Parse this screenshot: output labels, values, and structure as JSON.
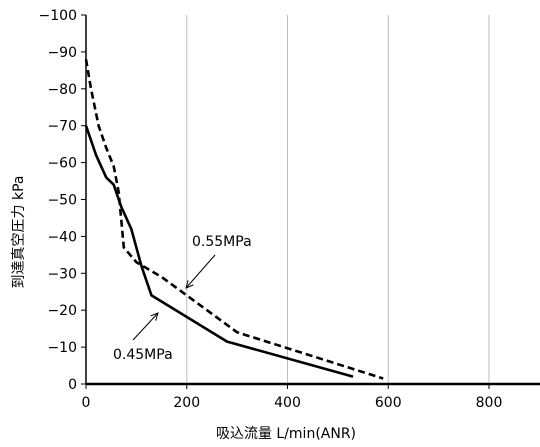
{
  "chart_data": {
    "type": "line",
    "title": "",
    "xlabel": "吸込流量 L/min(ANR)",
    "ylabel": "到達真空圧力 kPa",
    "xlim": [
      0,
      900
    ],
    "ylim": [
      0,
      -100
    ],
    "x_ticks": [
      0,
      200,
      400,
      600,
      800
    ],
    "y_ticks": [
      0,
      -10,
      -20,
      -30,
      -40,
      -50,
      -60,
      -70,
      -80,
      -90,
      -100
    ],
    "x_tick_labels": [
      "0",
      "200",
      "400",
      "600",
      "800"
    ],
    "y_tick_labels": [
      "0",
      "−10",
      "−20",
      "−30",
      "−40",
      "−50",
      "−60",
      "−70",
      "−80",
      "−90",
      "−100"
    ],
    "grid": {
      "vertical": true,
      "horizontal": false
    },
    "legend": "none",
    "series": [
      {
        "name": "0.45MPa",
        "style": "solid",
        "color": "#000000",
        "points": [
          [
            0,
            -70
          ],
          [
            20,
            -62
          ],
          [
            40,
            -56
          ],
          [
            55,
            -54
          ],
          [
            70,
            -48
          ],
          [
            90,
            -42
          ],
          [
            110,
            -32
          ],
          [
            130,
            -24
          ],
          [
            280,
            -11.5
          ],
          [
            530,
            -2
          ]
        ]
      },
      {
        "name": "0.55MPa",
        "style": "dashed",
        "color": "#000000",
        "points": [
          [
            0,
            -88
          ],
          [
            10,
            -80
          ],
          [
            25,
            -70
          ],
          [
            40,
            -64
          ],
          [
            55,
            -59
          ],
          [
            65,
            -52
          ],
          [
            75,
            -37
          ],
          [
            100,
            -33
          ],
          [
            150,
            -29
          ],
          [
            300,
            -14
          ],
          [
            590,
            -1.5
          ]
        ]
      }
    ],
    "annotations": [
      {
        "text": "0.55MPa",
        "series": "0.55MPa"
      },
      {
        "text": "0.45MPa",
        "series": "0.45MPa"
      }
    ]
  }
}
